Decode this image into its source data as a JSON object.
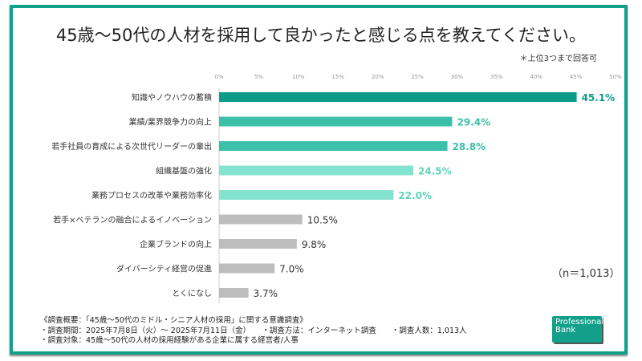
{
  "chart_data": {
    "type": "bar",
    "orientation": "horizontal",
    "title": "45歳～50代の人材を採用して良かったと感じる点を教えてください。",
    "note": "＊上位3つまで回答可",
    "sample": "（n＝1,013）",
    "xlim": [
      0,
      50
    ],
    "ticks": [
      "0%",
      "5%",
      "10%",
      "15%",
      "20%",
      "25%",
      "30%",
      "35%",
      "40%",
      "45%",
      "50%"
    ],
    "categories": [
      "知識やノウハウの蓄積",
      "業績/業界競争力の向上",
      "若手社員の育成による次世代リーダーの輩出",
      "組織基盤の強化",
      "業務プロセスの改革や業務効率化",
      "若手×ベテランの融合によるイノベーション",
      "企業ブランドの向上",
      "ダイバーシティ経営の促進",
      "とくになし"
    ],
    "values": [
      45.1,
      29.4,
      28.8,
      24.5,
      22.0,
      10.5,
      9.8,
      7.0,
      3.7
    ],
    "labels": [
      "45.1%",
      "29.4%",
      "28.8%",
      "24.5%",
      "22.0%",
      "10.5%",
      "9.8%",
      "7.0%",
      "3.7%"
    ],
    "colors": [
      "#0c9c88",
      "#3cc0a8",
      "#3cc0a8",
      "#84e3cf",
      "#84e3cf",
      "#bdbdbd",
      "#bdbdbd",
      "#bdbdbd",
      "#bdbdbd"
    ],
    "label_colors": [
      "#0c9c88",
      "#3cc0a8",
      "#3cc0a8",
      "#5fd4bc",
      "#5fd4bc",
      "#333",
      "#333",
      "#333",
      "#333"
    ],
    "grid": false
  },
  "footer": {
    "lines": [
      "《調査概要：「45歳～50代のミドル・シニア人材の採用」に関する意識調査》",
      "・調査期間：2025年7月8日（火）～ 2025年7月11日（金）　　・調査方法：インターネット調査　　・調査人数：1,013人",
      "・調査対象：45歳～50代の人材の採用経験がある企業に属する経営者/人事"
    ]
  },
  "logo": {
    "text": "Professional Bank"
  }
}
